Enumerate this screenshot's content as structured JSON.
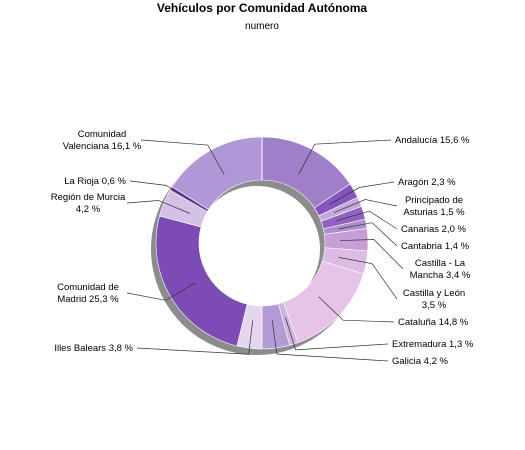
{
  "chart_data": {
    "type": "pie",
    "title": "Vehículos por Comunidad Autónoma",
    "subtitle": "numero",
    "colors": {
      "Andalucía": "#a07fc9",
      "Aragón": "#8456bd",
      "Principado de Asturias": "#c3a8db",
      "Canarias": "#9162c0",
      "Cantabria": "#ad8fd0",
      "Castilla - La Mancha": "#c99ed6",
      "Castilla y León": "#ddbce4",
      "Cataluña": "#e6c4e8",
      "Extremadura": "#cfb3e3",
      "Galicia": "#b59ad8",
      "Illes Balears": "#e5d6f0",
      "Comunidad de Madrid": "#7d4bb5",
      "Región de Murcia": "#d4c1e6",
      "La Rioja": "#6e3ca8",
      "Comunidad Valenciana": "#b197d7"
    },
    "slices": [
      {
        "name": "Andalucía",
        "value": 15.6,
        "label": [
          "Andalucía 15,6 %"
        ]
      },
      {
        "name": "Aragón",
        "value": 2.3,
        "label": [
          "Aragón 2,3 %"
        ]
      },
      {
        "name": "Principado de Asturias",
        "value": 1.5,
        "label": [
          "Principado de",
          "Asturias 1,5 %"
        ]
      },
      {
        "name": "Canarias",
        "value": 2.0,
        "label": [
          "Canarias 2,0 %"
        ]
      },
      {
        "name": "Cantabria",
        "value": 1.4,
        "label": [
          "Cantabria 1,4 %"
        ]
      },
      {
        "name": "Castilla - La Mancha",
        "value": 3.4,
        "label": [
          "Castilla - La",
          "Mancha 3,4 %"
        ]
      },
      {
        "name": "Castilla y León",
        "value": 3.5,
        "label": [
          "Castilla y León",
          "3,5 %"
        ]
      },
      {
        "name": "Cataluña",
        "value": 14.8,
        "label": [
          "Cataluña 14,8 %"
        ]
      },
      {
        "name": "Extremadura",
        "value": 1.3,
        "label": [
          "Extremadura 1,3 %"
        ]
      },
      {
        "name": "Galicia",
        "value": 4.2,
        "label": [
          "Galicia 4,2 %"
        ]
      },
      {
        "name": "Illes Balears",
        "value": 3.8,
        "label": [
          "Illes Balears 3,8 %"
        ]
      },
      {
        "name": "Comunidad de Madrid",
        "value": 25.3,
        "label": [
          "Comunidad de",
          "Madrid 25,3 %"
        ]
      },
      {
        "name": "Región de Murcia",
        "value": 4.2,
        "label": [
          "Región de Murcia",
          "4,2 %"
        ]
      },
      {
        "name": "La Rioja",
        "value": 0.6,
        "label": [
          "La Rioja 0,6 %"
        ]
      },
      {
        "name": "Comunidad Valenciana",
        "value": 16.1,
        "label": [
          "Comunidad",
          "Valenciana 16,1 %"
        ]
      }
    ]
  }
}
